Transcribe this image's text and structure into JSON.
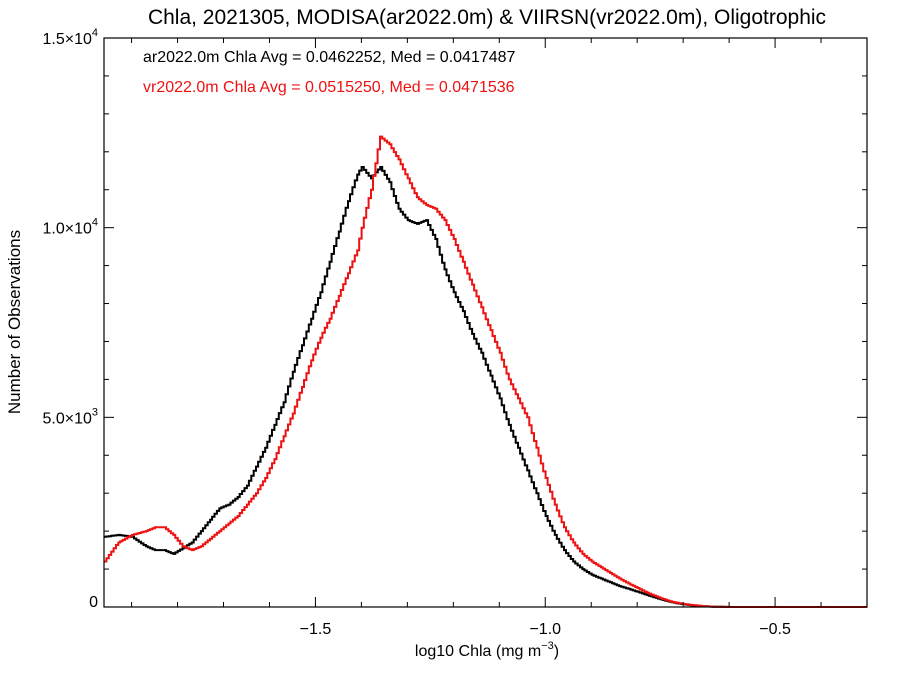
{
  "chart_data": {
    "type": "line",
    "title": "Chla, 2021305, MODISA(ar2022.0m) & VIIRSN(vr2022.0m), Oligotrophic",
    "xlabel_main": "log10 Chla (mg m",
    "xlabel_sup": "−3",
    "xlabel_end": ")",
    "ylabel": "Number of Observations",
    "xlim": [
      -1.96,
      -0.3
    ],
    "ylim": [
      0,
      15000
    ],
    "x_ticks": [
      {
        "value": -1.5,
        "label": "−1.5"
      },
      {
        "value": -1.0,
        "label": "−1.0"
      },
      {
        "value": -0.5,
        "label": "−0.5"
      }
    ],
    "y_ticks": [
      {
        "value": 0,
        "mant": "0",
        "exp": ""
      },
      {
        "value": 5000,
        "mant": "5.0×10",
        "exp": "3"
      },
      {
        "value": 10000,
        "mant": "1.0×10",
        "exp": "4"
      },
      {
        "value": 15000,
        "mant": "1.5×10",
        "exp": "4"
      }
    ],
    "annotations": [
      {
        "text": "ar2022.0m Chla Avg = 0.0462252, Med = 0.0417487",
        "color": "#000000"
      },
      {
        "text": "vr2022.0m Chla Avg = 0.0515250, Med = 0.0471536",
        "color": "#ee1111"
      }
    ],
    "series": [
      {
        "color": "#000000",
        "points": [
          [
            -1.96,
            1850
          ],
          [
            -1.93,
            1900
          ],
          [
            -1.9,
            1850
          ],
          [
            -1.87,
            1600
          ],
          [
            -1.85,
            1500
          ],
          [
            -1.83,
            1500
          ],
          [
            -1.81,
            1400
          ],
          [
            -1.79,
            1550
          ],
          [
            -1.77,
            1700
          ],
          [
            -1.75,
            2000
          ],
          [
            -1.73,
            2300
          ],
          [
            -1.71,
            2600
          ],
          [
            -1.69,
            2700
          ],
          [
            -1.67,
            2900
          ],
          [
            -1.65,
            3200
          ],
          [
            -1.63,
            3700
          ],
          [
            -1.61,
            4200
          ],
          [
            -1.59,
            4800
          ],
          [
            -1.57,
            5400
          ],
          [
            -1.55,
            6200
          ],
          [
            -1.53,
            6900
          ],
          [
            -1.51,
            7600
          ],
          [
            -1.49,
            8300
          ],
          [
            -1.47,
            9100
          ],
          [
            -1.45,
            9900
          ],
          [
            -1.43,
            10700
          ],
          [
            -1.41,
            11400
          ],
          [
            -1.4,
            11600
          ],
          [
            -1.38,
            11300
          ],
          [
            -1.36,
            11600
          ],
          [
            -1.34,
            11200
          ],
          [
            -1.32,
            10500
          ],
          [
            -1.3,
            10200
          ],
          [
            -1.28,
            10100
          ],
          [
            -1.26,
            10200
          ],
          [
            -1.24,
            9700
          ],
          [
            -1.22,
            8900
          ],
          [
            -1.2,
            8300
          ],
          [
            -1.18,
            7800
          ],
          [
            -1.16,
            7200
          ],
          [
            -1.14,
            6700
          ],
          [
            -1.12,
            6100
          ],
          [
            -1.1,
            5500
          ],
          [
            -1.08,
            4800
          ],
          [
            -1.06,
            4200
          ],
          [
            -1.04,
            3600
          ],
          [
            -1.02,
            3000
          ],
          [
            -1.0,
            2400
          ],
          [
            -0.98,
            1900
          ],
          [
            -0.96,
            1500
          ],
          [
            -0.94,
            1200
          ],
          [
            -0.92,
            1000
          ],
          [
            -0.9,
            850
          ],
          [
            -0.88,
            750
          ],
          [
            -0.86,
            650
          ],
          [
            -0.84,
            550
          ],
          [
            -0.82,
            480
          ],
          [
            -0.8,
            400
          ],
          [
            -0.78,
            320
          ],
          [
            -0.76,
            240
          ],
          [
            -0.74,
            170
          ],
          [
            -0.72,
            110
          ],
          [
            -0.7,
            70
          ],
          [
            -0.68,
            40
          ],
          [
            -0.66,
            20
          ],
          [
            -0.64,
            10
          ],
          [
            -0.6,
            0
          ],
          [
            -0.3,
            0
          ]
        ]
      },
      {
        "color": "#ee1111",
        "points": [
          [
            -1.96,
            1200
          ],
          [
            -1.93,
            1700
          ],
          [
            -1.9,
            1900
          ],
          [
            -1.87,
            2000
          ],
          [
            -1.85,
            2100
          ],
          [
            -1.83,
            2100
          ],
          [
            -1.81,
            1900
          ],
          [
            -1.79,
            1600
          ],
          [
            -1.77,
            1500
          ],
          [
            -1.75,
            1600
          ],
          [
            -1.73,
            1800
          ],
          [
            -1.71,
            2000
          ],
          [
            -1.69,
            2200
          ],
          [
            -1.67,
            2400
          ],
          [
            -1.65,
            2700
          ],
          [
            -1.63,
            3000
          ],
          [
            -1.61,
            3400
          ],
          [
            -1.59,
            3900
          ],
          [
            -1.57,
            4500
          ],
          [
            -1.55,
            5100
          ],
          [
            -1.53,
            5800
          ],
          [
            -1.51,
            6500
          ],
          [
            -1.49,
            7100
          ],
          [
            -1.47,
            7600
          ],
          [
            -1.45,
            8200
          ],
          [
            -1.43,
            8800
          ],
          [
            -1.41,
            9400
          ],
          [
            -1.4,
            10000
          ],
          [
            -1.38,
            11000
          ],
          [
            -1.37,
            11700
          ],
          [
            -1.36,
            12400
          ],
          [
            -1.34,
            12200
          ],
          [
            -1.32,
            11800
          ],
          [
            -1.3,
            11300
          ],
          [
            -1.28,
            10800
          ],
          [
            -1.26,
            10600
          ],
          [
            -1.24,
            10500
          ],
          [
            -1.22,
            10200
          ],
          [
            -1.2,
            9700
          ],
          [
            -1.18,
            9100
          ],
          [
            -1.16,
            8500
          ],
          [
            -1.14,
            7900
          ],
          [
            -1.12,
            7300
          ],
          [
            -1.1,
            6700
          ],
          [
            -1.08,
            6000
          ],
          [
            -1.06,
            5500
          ],
          [
            -1.04,
            5000
          ],
          [
            -1.02,
            4200
          ],
          [
            -1.0,
            3400
          ],
          [
            -0.98,
            2700
          ],
          [
            -0.96,
            2100
          ],
          [
            -0.94,
            1700
          ],
          [
            -0.92,
            1400
          ],
          [
            -0.9,
            1200
          ],
          [
            -0.88,
            1050
          ],
          [
            -0.86,
            900
          ],
          [
            -0.84,
            750
          ],
          [
            -0.82,
            620
          ],
          [
            -0.8,
            500
          ],
          [
            -0.78,
            380
          ],
          [
            -0.76,
            280
          ],
          [
            -0.74,
            190
          ],
          [
            -0.72,
            120
          ],
          [
            -0.7,
            80
          ],
          [
            -0.68,
            50
          ],
          [
            -0.66,
            25
          ],
          [
            -0.64,
            10
          ],
          [
            -0.6,
            0
          ],
          [
            -0.3,
            0
          ]
        ]
      }
    ]
  }
}
